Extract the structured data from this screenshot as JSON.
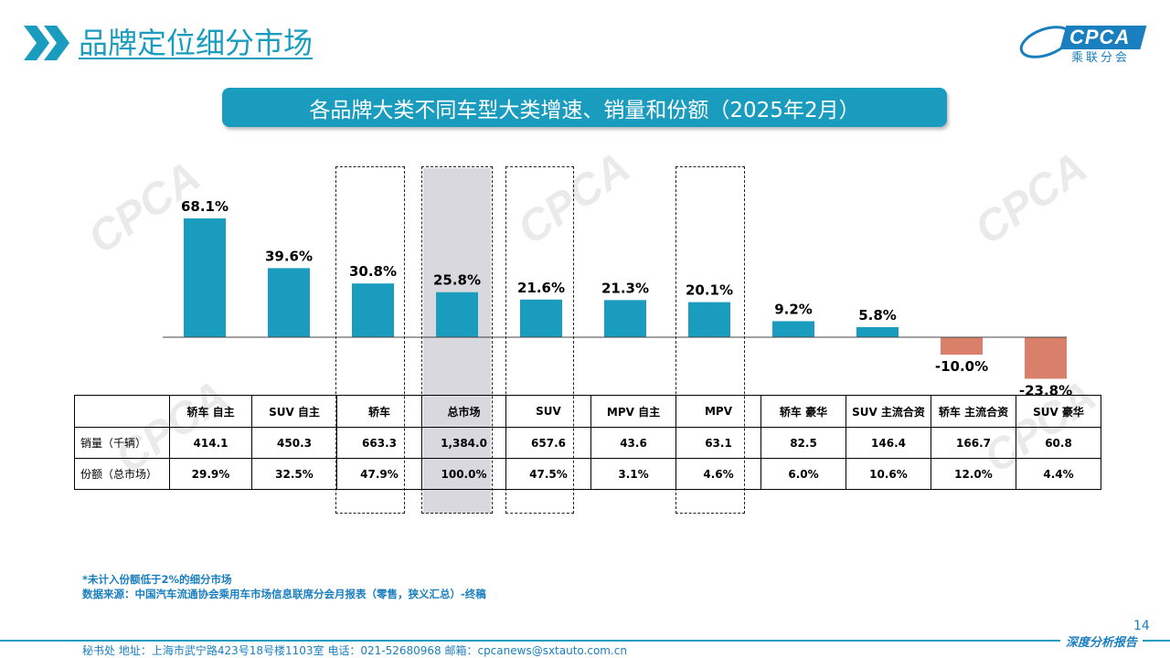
{
  "header": {
    "title": "品牌定位细分市场",
    "logo_text": "CPCA",
    "logo_sub": "乘联分会"
  },
  "banner": {
    "text": "各品牌大类不同车型大类增速、销量和份额（2025年2月）"
  },
  "colors": {
    "accent": "#1a9cbf",
    "positive_bar": "#1a9cbf",
    "negative_bar": "#d9806b",
    "highlight": "#d9d8de"
  },
  "chart_data": {
    "type": "bar",
    "categories": [
      "轿车 自主",
      "SUV 自主",
      "轿车",
      "总市场",
      "SUV",
      "MPV 自主",
      "MPV",
      "轿车 豪华",
      "SUV 主流合资",
      "轿车 主流合资",
      "SUV 豪华"
    ],
    "series": [
      {
        "values": [
          68.1,
          39.6,
          30.8,
          25.8,
          21.6,
          21.3,
          20.1,
          9.2,
          5.8,
          -10.0,
          -23.8
        ]
      }
    ],
    "value_labels": [
      "68.1%",
      "39.6%",
      "30.8%",
      "25.8%",
      "21.6%",
      "21.3%",
      "20.1%",
      "9.2%",
      "5.8%",
      "-10.0%",
      "-23.8%"
    ],
    "ylim": [
      -25,
      70
    ],
    "grid": false,
    "highlighted_categories": [
      "轿车",
      "总市场",
      "SUV",
      "MPV"
    ],
    "shaded_category": "总市场"
  },
  "table": {
    "rows": [
      {
        "label": "销量（千辆）",
        "values": [
          "414.1",
          "450.3",
          "663.3",
          "1,384.0",
          "657.6",
          "43.6",
          "63.1",
          "82.5",
          "146.4",
          "166.7",
          "60.8"
        ]
      },
      {
        "label": "份额（总市场）",
        "values": [
          "29.9%",
          "32.5%",
          "47.9%",
          "100.0%",
          "47.5%",
          "3.1%",
          "4.6%",
          "6.0%",
          "10.6%",
          "12.0%",
          "4.4%"
        ]
      }
    ]
  },
  "footnote": {
    "line1": "*未计入份额低于2%的细分市场",
    "line2": "数据来源：中国汽车流通协会乘用车市场信息联席分会月报表（零售，狭义汇总）-终稿"
  },
  "footer": {
    "address": "秘书处   地址：上海市武宁路423号18号楼1103室   电话：021-52680968   邮箱：cpcanews@sxtauto.com.cn",
    "right": "深度分析报告",
    "page": "14"
  }
}
